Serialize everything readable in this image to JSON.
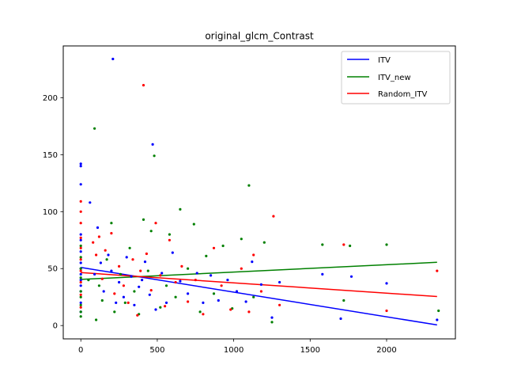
{
  "chart_data": {
    "type": "scatter",
    "title": "original_glcm_Contrast",
    "xlabel": "",
    "ylabel": "",
    "xlim": [
      -115,
      2450
    ],
    "ylim": [
      -11.7,
      245.5
    ],
    "xticks": [
      0,
      500,
      1000,
      1500,
      2000
    ],
    "yticks": [
      0,
      50,
      100,
      150,
      200
    ],
    "grid": false,
    "legend_position": "top-right",
    "series": [
      {
        "name": "ITV",
        "color": "#0000ff",
        "fit_line": {
          "x": [
            0,
            2330
          ],
          "y": [
            51,
            0.5
          ]
        },
        "points": [
          {
            "x": 0,
            "y": 142
          },
          {
            "x": 0,
            "y": 140
          },
          {
            "x": 0,
            "y": 124
          },
          {
            "x": 0,
            "y": 80
          },
          {
            "x": 0,
            "y": 75
          },
          {
            "x": 0,
            "y": 65
          },
          {
            "x": 0,
            "y": 55
          },
          {
            "x": 0,
            "y": 50
          },
          {
            "x": 0,
            "y": 45
          },
          {
            "x": 0,
            "y": 40
          },
          {
            "x": 0,
            "y": 35
          },
          {
            "x": 0,
            "y": 30
          },
          {
            "x": 0,
            "y": 20
          },
          {
            "x": 0,
            "y": 12
          },
          {
            "x": 60,
            "y": 108
          },
          {
            "x": 90,
            "y": 45
          },
          {
            "x": 110,
            "y": 86
          },
          {
            "x": 130,
            "y": 55
          },
          {
            "x": 150,
            "y": 30
          },
          {
            "x": 180,
            "y": 62
          },
          {
            "x": 200,
            "y": 48
          },
          {
            "x": 210,
            "y": 234
          },
          {
            "x": 230,
            "y": 20
          },
          {
            "x": 250,
            "y": 38
          },
          {
            "x": 280,
            "y": 25
          },
          {
            "x": 300,
            "y": 60
          },
          {
            "x": 330,
            "y": 43
          },
          {
            "x": 350,
            "y": 18
          },
          {
            "x": 380,
            "y": 34
          },
          {
            "x": 400,
            "y": 40
          },
          {
            "x": 420,
            "y": 56
          },
          {
            "x": 450,
            "y": 27
          },
          {
            "x": 470,
            "y": 159
          },
          {
            "x": 490,
            "y": 14
          },
          {
            "x": 530,
            "y": 46
          },
          {
            "x": 560,
            "y": 20
          },
          {
            "x": 600,
            "y": 64
          },
          {
            "x": 650,
            "y": 39
          },
          {
            "x": 700,
            "y": 28
          },
          {
            "x": 760,
            "y": 46
          },
          {
            "x": 800,
            "y": 20
          },
          {
            "x": 850,
            "y": 44
          },
          {
            "x": 900,
            "y": 22
          },
          {
            "x": 960,
            "y": 40
          },
          {
            "x": 1020,
            "y": 30
          },
          {
            "x": 1080,
            "y": 21
          },
          {
            "x": 1120,
            "y": 56
          },
          {
            "x": 1180,
            "y": 36
          },
          {
            "x": 1250,
            "y": 7
          },
          {
            "x": 1300,
            "y": 38
          },
          {
            "x": 1580,
            "y": 45
          },
          {
            "x": 1700,
            "y": 6
          },
          {
            "x": 1770,
            "y": 43
          },
          {
            "x": 2000,
            "y": 37
          },
          {
            "x": 2330,
            "y": 5
          }
        ]
      },
      {
        "name": "ITV_new",
        "color": "#008000",
        "fit_line": {
          "x": [
            0,
            2330
          ],
          "y": [
            40.5,
            55.5
          ]
        },
        "points": [
          {
            "x": 0,
            "y": 70
          },
          {
            "x": 0,
            "y": 60
          },
          {
            "x": 0,
            "y": 50
          },
          {
            "x": 0,
            "y": 42
          },
          {
            "x": 0,
            "y": 30
          },
          {
            "x": 0,
            "y": 25
          },
          {
            "x": 0,
            "y": 18
          },
          {
            "x": 0,
            "y": 12
          },
          {
            "x": 0,
            "y": 8
          },
          {
            "x": 50,
            "y": 40
          },
          {
            "x": 90,
            "y": 173
          },
          {
            "x": 100,
            "y": 5
          },
          {
            "x": 120,
            "y": 35
          },
          {
            "x": 140,
            "y": 22
          },
          {
            "x": 170,
            "y": 58
          },
          {
            "x": 200,
            "y": 90
          },
          {
            "x": 220,
            "y": 12
          },
          {
            "x": 260,
            "y": 45
          },
          {
            "x": 290,
            "y": 20
          },
          {
            "x": 320,
            "y": 68
          },
          {
            "x": 350,
            "y": 30
          },
          {
            "x": 380,
            "y": 10
          },
          {
            "x": 410,
            "y": 93
          },
          {
            "x": 440,
            "y": 48
          },
          {
            "x": 460,
            "y": 83
          },
          {
            "x": 480,
            "y": 149
          },
          {
            "x": 520,
            "y": 16
          },
          {
            "x": 560,
            "y": 35
          },
          {
            "x": 580,
            "y": 80
          },
          {
            "x": 620,
            "y": 25
          },
          {
            "x": 650,
            "y": 102
          },
          {
            "x": 700,
            "y": 50
          },
          {
            "x": 740,
            "y": 89
          },
          {
            "x": 780,
            "y": 12
          },
          {
            "x": 820,
            "y": 61
          },
          {
            "x": 870,
            "y": 28
          },
          {
            "x": 930,
            "y": 70
          },
          {
            "x": 990,
            "y": 15
          },
          {
            "x": 1050,
            "y": 76
          },
          {
            "x": 1100,
            "y": 123
          },
          {
            "x": 1130,
            "y": 25
          },
          {
            "x": 1200,
            "y": 73
          },
          {
            "x": 1250,
            "y": 3
          },
          {
            "x": 1580,
            "y": 71
          },
          {
            "x": 1720,
            "y": 22
          },
          {
            "x": 1760,
            "y": 70
          },
          {
            "x": 2000,
            "y": 71
          },
          {
            "x": 2340,
            "y": 13
          }
        ]
      },
      {
        "name": "Random_ITV",
        "color": "#ff0000",
        "fit_line": {
          "x": [
            0,
            2330
          ],
          "y": [
            46.5,
            25.5
          ]
        },
        "points": [
          {
            "x": 0,
            "y": 109
          },
          {
            "x": 0,
            "y": 100
          },
          {
            "x": 0,
            "y": 90
          },
          {
            "x": 0,
            "y": 77
          },
          {
            "x": 0,
            "y": 68
          },
          {
            "x": 0,
            "y": 58
          },
          {
            "x": 0,
            "y": 48
          },
          {
            "x": 0,
            "y": 38
          },
          {
            "x": 0,
            "y": 27
          },
          {
            "x": 0,
            "y": 16
          },
          {
            "x": 80,
            "y": 73
          },
          {
            "x": 100,
            "y": 62
          },
          {
            "x": 120,
            "y": 78
          },
          {
            "x": 140,
            "y": 41
          },
          {
            "x": 160,
            "y": 66
          },
          {
            "x": 200,
            "y": 81
          },
          {
            "x": 220,
            "y": 28
          },
          {
            "x": 250,
            "y": 52
          },
          {
            "x": 280,
            "y": 35
          },
          {
            "x": 310,
            "y": 20
          },
          {
            "x": 340,
            "y": 58
          },
          {
            "x": 370,
            "y": 9
          },
          {
            "x": 390,
            "y": 48
          },
          {
            "x": 410,
            "y": 211
          },
          {
            "x": 430,
            "y": 63
          },
          {
            "x": 460,
            "y": 31
          },
          {
            "x": 490,
            "y": 90
          },
          {
            "x": 520,
            "y": 44
          },
          {
            "x": 550,
            "y": 17
          },
          {
            "x": 580,
            "y": 75
          },
          {
            "x": 620,
            "y": 38
          },
          {
            "x": 660,
            "y": 52
          },
          {
            "x": 700,
            "y": 21
          },
          {
            "x": 750,
            "y": 40
          },
          {
            "x": 800,
            "y": 10
          },
          {
            "x": 870,
            "y": 68
          },
          {
            "x": 920,
            "y": 35
          },
          {
            "x": 980,
            "y": 14
          },
          {
            "x": 1050,
            "y": 50
          },
          {
            "x": 1100,
            "y": 12
          },
          {
            "x": 1130,
            "y": 62
          },
          {
            "x": 1180,
            "y": 30
          },
          {
            "x": 1260,
            "y": 96
          },
          {
            "x": 1300,
            "y": 18
          },
          {
            "x": 1720,
            "y": 71
          },
          {
            "x": 2000,
            "y": 13
          },
          {
            "x": 2330,
            "y": 48
          }
        ]
      }
    ]
  }
}
